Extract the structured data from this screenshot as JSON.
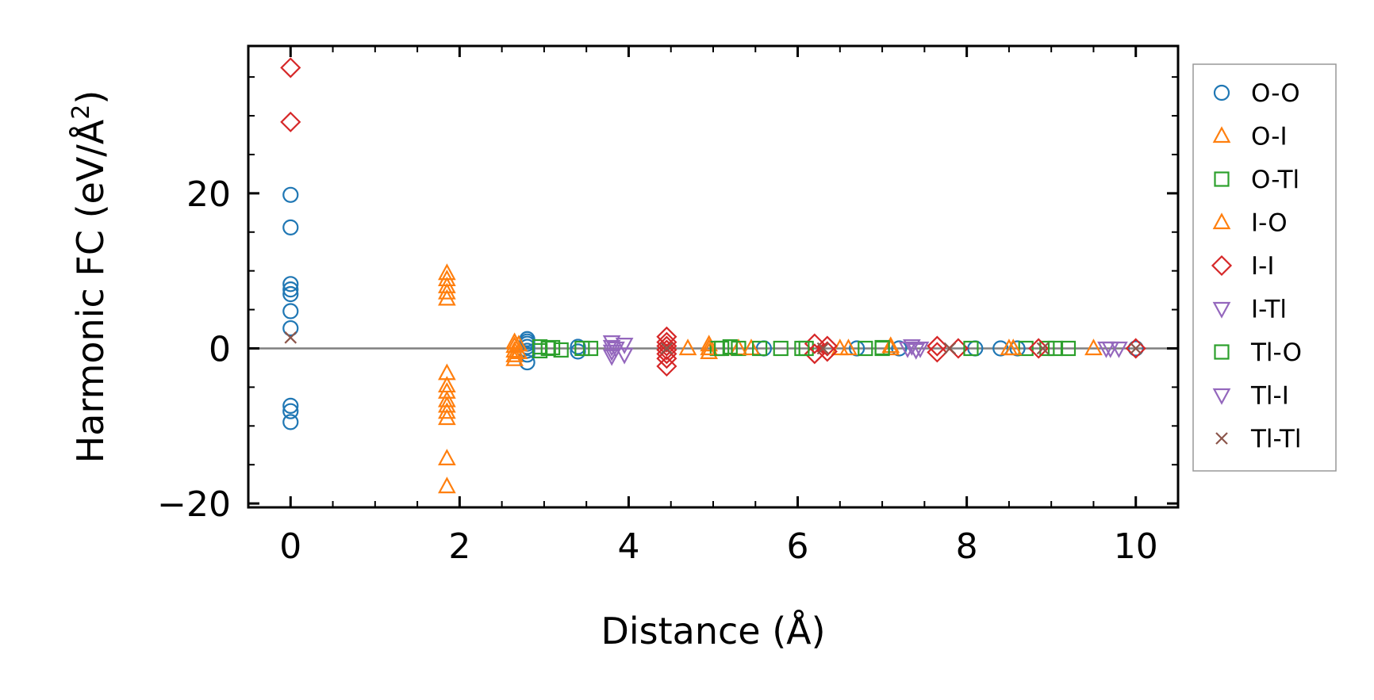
{
  "chart_data": {
    "type": "scatter",
    "xlabel": "Distance (Å)",
    "ylabel_main": "Harmonic FC (eV/Å",
    "ylabel_sup": "2",
    "ylabel_close": ")",
    "xlim": [
      -0.5,
      10.5
    ],
    "ylim": [
      -20.5,
      39
    ],
    "x_ticks": [
      0,
      2,
      4,
      6,
      8,
      10
    ],
    "x_tick_labels": [
      "0",
      "2",
      "4",
      "6",
      "8",
      "10"
    ],
    "y_ticks": [
      -20,
      0,
      20
    ],
    "y_tick_labels": [
      "−20",
      "0",
      "20"
    ],
    "zero_line": true,
    "grid": false,
    "legend_position": "right-outside",
    "series": [
      {
        "name": "O-O",
        "marker": "circle",
        "color": "#1f77b4",
        "points": [
          [
            0,
            19.8
          ],
          [
            0,
            15.6
          ],
          [
            0,
            8.3
          ],
          [
            0,
            7.6
          ],
          [
            0,
            7.0
          ],
          [
            0,
            4.8
          ],
          [
            0,
            2.6
          ],
          [
            0,
            -7.4
          ],
          [
            0,
            -8.1
          ],
          [
            0,
            -9.5
          ],
          [
            2.8,
            1.2
          ],
          [
            2.8,
            0.9
          ],
          [
            2.8,
            0.6
          ],
          [
            2.8,
            0.2
          ],
          [
            2.8,
            -0.3
          ],
          [
            2.8,
            -0.8
          ],
          [
            2.8,
            -1.8
          ],
          [
            3.4,
            0.2
          ],
          [
            3.4,
            -0.4
          ],
          [
            5.6,
            0
          ],
          [
            6.7,
            0
          ],
          [
            7.2,
            0
          ],
          [
            8.1,
            0
          ],
          [
            8.4,
            0
          ],
          [
            8.6,
            0
          ],
          [
            10.0,
            0
          ]
        ]
      },
      {
        "name": "O-I",
        "marker": "triangle-up",
        "color": "#ff7f0e",
        "points": [
          [
            1.85,
            9.7
          ],
          [
            1.85,
            8.9
          ],
          [
            1.85,
            8.0
          ],
          [
            1.85,
            7.2
          ],
          [
            1.85,
            6.4
          ],
          [
            1.85,
            -3.2
          ],
          [
            1.85,
            -4.8
          ],
          [
            1.85,
            -5.6
          ],
          [
            1.85,
            -6.7
          ],
          [
            1.85,
            -7.4
          ],
          [
            1.85,
            -8.2
          ],
          [
            1.85,
            -9.0
          ],
          [
            1.85,
            -14.2
          ],
          [
            1.85,
            -17.8
          ],
          [
            2.65,
            0.8
          ],
          [
            2.65,
            0.3
          ],
          [
            2.65,
            -0.3
          ],
          [
            2.65,
            -0.9
          ],
          [
            2.65,
            -1.4
          ],
          [
            4.7,
            0
          ],
          [
            4.95,
            0.5
          ],
          [
            4.95,
            -0.5
          ],
          [
            5.3,
            0
          ],
          [
            6.5,
            0
          ],
          [
            7.1,
            0
          ],
          [
            8.5,
            0
          ],
          [
            9.5,
            0
          ]
        ]
      },
      {
        "name": "O-Tl",
        "marker": "square",
        "color": "#2ca02c",
        "points": [
          [
            2.95,
            0.2
          ],
          [
            2.95,
            -0.3
          ],
          [
            3.1,
            0.1
          ],
          [
            3.2,
            -0.2
          ],
          [
            3.55,
            0
          ],
          [
            5.05,
            0
          ],
          [
            5.2,
            0.2
          ],
          [
            5.3,
            0
          ],
          [
            5.8,
            0
          ],
          [
            6.1,
            0
          ],
          [
            6.8,
            0
          ],
          [
            7.0,
            0
          ],
          [
            8.7,
            0
          ],
          [
            8.95,
            0
          ],
          [
            9.2,
            0
          ]
        ]
      },
      {
        "name": "I-O",
        "marker": "triangle-up",
        "color": "#ff7f0e",
        "points": [
          [
            2.7,
            0.5
          ],
          [
            2.7,
            -0.5
          ],
          [
            4.95,
            0
          ],
          [
            5.45,
            0
          ],
          [
            6.6,
            0
          ],
          [
            7.1,
            0.3
          ],
          [
            8.55,
            0
          ]
        ]
      },
      {
        "name": "I-I",
        "marker": "diamond",
        "color": "#d62728",
        "points": [
          [
            0,
            36.2
          ],
          [
            0,
            29.2
          ],
          [
            4.45,
            1.5
          ],
          [
            4.45,
            0.8
          ],
          [
            4.45,
            0.3
          ],
          [
            4.45,
            -0.2
          ],
          [
            4.45,
            -0.7
          ],
          [
            4.45,
            -1.3
          ],
          [
            4.45,
            -2.3
          ],
          [
            6.2,
            0.6
          ],
          [
            6.2,
            -0.7
          ],
          [
            6.35,
            0.3
          ],
          [
            6.35,
            -0.4
          ],
          [
            7.65,
            0.3
          ],
          [
            7.65,
            -0.5
          ],
          [
            7.9,
            0
          ],
          [
            8.85,
            0
          ],
          [
            10.0,
            0
          ]
        ]
      },
      {
        "name": "I-Tl",
        "marker": "triangle-down",
        "color": "#9467bd",
        "points": [
          [
            3.8,
            0.8
          ],
          [
            3.8,
            0.2
          ],
          [
            3.8,
            -0.4
          ],
          [
            3.8,
            -1.0
          ],
          [
            3.95,
            0.5
          ],
          [
            3.95,
            -0.8
          ],
          [
            7.3,
            0
          ],
          [
            7.45,
            0
          ],
          [
            9.65,
            0
          ],
          [
            9.8,
            0
          ]
        ]
      },
      {
        "name": "Tl-O",
        "marker": "square",
        "color": "#2ca02c",
        "points": [
          [
            3.05,
            0
          ],
          [
            3.45,
            0
          ],
          [
            5.1,
            0
          ],
          [
            5.55,
            0
          ],
          [
            6.05,
            0
          ],
          [
            7.0,
            0.1
          ],
          [
            8.05,
            0
          ],
          [
            9.05,
            0
          ]
        ]
      },
      {
        "name": "Tl-I",
        "marker": "triangle-down",
        "color": "#9467bd",
        "points": [
          [
            3.85,
            0
          ],
          [
            7.35,
            0.3
          ],
          [
            7.4,
            -0.2
          ],
          [
            9.7,
            0
          ]
        ]
      },
      {
        "name": "Tl-Tl",
        "marker": "x",
        "color": "#8c564b",
        "points": [
          [
            0,
            1.4
          ],
          [
            4.45,
            0
          ],
          [
            6.3,
            0
          ],
          [
            7.8,
            0
          ],
          [
            8.9,
            0
          ],
          [
            10.0,
            0
          ]
        ]
      }
    ]
  }
}
